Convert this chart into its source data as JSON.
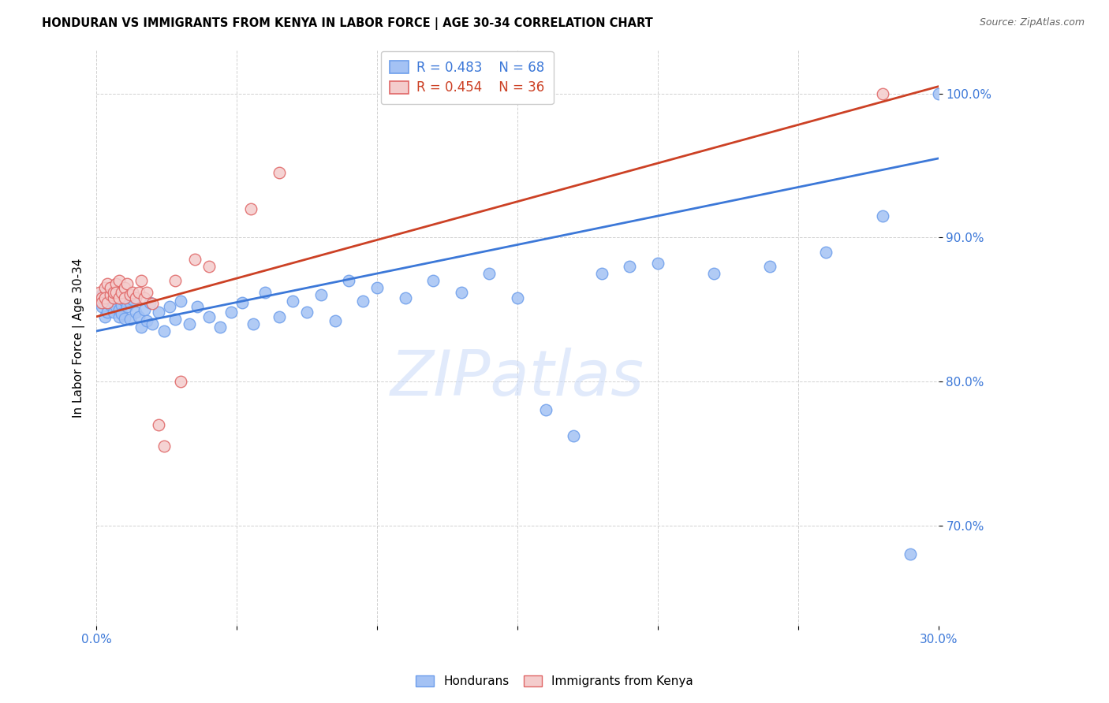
{
  "title": "HONDURAN VS IMMIGRANTS FROM KENYA IN LABOR FORCE | AGE 30-34 CORRELATION CHART",
  "source": "Source: ZipAtlas.com",
  "ylabel": "In Labor Force | Age 30-34",
  "xlim": [
    0.0,
    0.3
  ],
  "ylim": [
    0.63,
    1.03
  ],
  "xticks": [
    0.0,
    0.05,
    0.1,
    0.15,
    0.2,
    0.25,
    0.3
  ],
  "xtick_labels": [
    "0.0%",
    "",
    "",
    "",
    "",
    "",
    "30.0%"
  ],
  "yticks": [
    0.7,
    0.8,
    0.9,
    1.0
  ],
  "ytick_labels": [
    "70.0%",
    "80.0%",
    "90.0%",
    "100.0%"
  ],
  "blue_color": "#a4c2f4",
  "pink_color": "#f4cccc",
  "blue_edge": "#6d9eeb",
  "pink_edge": "#e06666",
  "trend_blue": "#3c78d8",
  "trend_pink": "#cc4125",
  "legend_R_blue": "R = 0.483",
  "legend_N_blue": "N = 68",
  "legend_R_pink": "R = 0.454",
  "legend_N_pink": "N = 36",
  "watermark": "ZIPatlas",
  "blue_x": [
    0.001,
    0.002,
    0.002,
    0.003,
    0.003,
    0.004,
    0.004,
    0.005,
    0.005,
    0.005,
    0.006,
    0.006,
    0.007,
    0.007,
    0.008,
    0.008,
    0.009,
    0.009,
    0.01,
    0.01,
    0.011,
    0.012,
    0.012,
    0.013,
    0.014,
    0.015,
    0.016,
    0.017,
    0.018,
    0.019,
    0.02,
    0.022,
    0.024,
    0.026,
    0.028,
    0.03,
    0.033,
    0.036,
    0.04,
    0.044,
    0.048,
    0.052,
    0.056,
    0.06,
    0.065,
    0.07,
    0.075,
    0.08,
    0.085,
    0.09,
    0.095,
    0.1,
    0.11,
    0.12,
    0.13,
    0.14,
    0.15,
    0.16,
    0.17,
    0.18,
    0.19,
    0.2,
    0.22,
    0.24,
    0.26,
    0.28,
    0.29,
    0.3
  ],
  "blue_y": [
    0.855,
    0.86,
    0.852,
    0.858,
    0.845,
    0.862,
    0.848,
    0.86,
    0.853,
    0.857,
    0.855,
    0.848,
    0.852,
    0.858,
    0.85,
    0.845,
    0.853,
    0.847,
    0.856,
    0.844,
    0.852,
    0.855,
    0.843,
    0.857,
    0.848,
    0.845,
    0.838,
    0.85,
    0.842,
    0.855,
    0.84,
    0.848,
    0.835,
    0.852,
    0.843,
    0.856,
    0.84,
    0.852,
    0.845,
    0.838,
    0.848,
    0.855,
    0.84,
    0.862,
    0.845,
    0.856,
    0.848,
    0.86,
    0.842,
    0.87,
    0.856,
    0.865,
    0.858,
    0.87,
    0.862,
    0.875,
    0.858,
    0.78,
    0.762,
    0.875,
    0.88,
    0.882,
    0.875,
    0.88,
    0.89,
    0.915,
    0.68,
    1.0
  ],
  "pink_x": [
    0.001,
    0.002,
    0.002,
    0.003,
    0.003,
    0.004,
    0.004,
    0.005,
    0.005,
    0.006,
    0.006,
    0.007,
    0.007,
    0.008,
    0.008,
    0.009,
    0.01,
    0.01,
    0.011,
    0.012,
    0.013,
    0.014,
    0.015,
    0.016,
    0.017,
    0.018,
    0.02,
    0.022,
    0.024,
    0.028,
    0.03,
    0.035,
    0.04,
    0.055,
    0.065,
    0.28
  ],
  "pink_y": [
    0.862,
    0.858,
    0.855,
    0.865,
    0.858,
    0.868,
    0.855,
    0.86,
    0.865,
    0.858,
    0.862,
    0.868,
    0.862,
    0.858,
    0.87,
    0.862,
    0.865,
    0.858,
    0.868,
    0.86,
    0.862,
    0.858,
    0.862,
    0.87,
    0.858,
    0.862,
    0.854,
    0.77,
    0.755,
    0.87,
    0.8,
    0.885,
    0.88,
    0.92,
    0.945,
    1.0
  ],
  "blue_trendline_x": [
    0.0,
    0.3
  ],
  "blue_trendline_y": [
    0.835,
    0.955
  ],
  "pink_trendline_x": [
    0.0,
    0.3
  ],
  "pink_trendline_y": [
    0.845,
    1.005
  ]
}
